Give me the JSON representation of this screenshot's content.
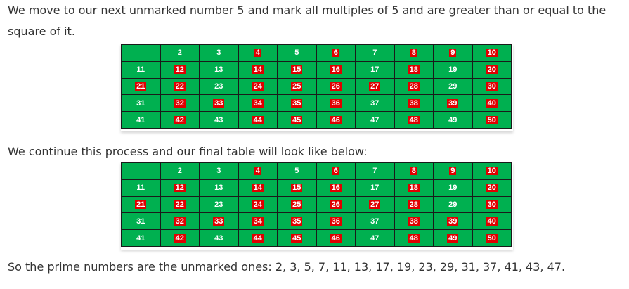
{
  "paragraphs": {
    "p1": "We move to our next unmarked number 5 and mark all multiples of 5 and are greater than or equal to the square of it.",
    "p2": "We continue this process and our final table will look like below:",
    "p3": "So the prime numbers are the unmarked ones: 2, 3, 5, 7, 11, 13, 17, 19, 23, 29, 31, 37, 41, 43, 47."
  },
  "colors": {
    "cell_green": "#00b050",
    "mark_red": "#e00000",
    "text_white": "#ffffff"
  },
  "table1": {
    "rows": [
      [
        "",
        "2",
        "3",
        "4",
        "5",
        "6",
        "7",
        "8",
        "9",
        "10"
      ],
      [
        "11",
        "12",
        "13",
        "14",
        "15",
        "16",
        "17",
        "18",
        "19",
        "20"
      ],
      [
        "21",
        "22",
        "23",
        "24",
        "25",
        "26",
        "27",
        "28",
        "29",
        "30"
      ],
      [
        "31",
        "32",
        "33",
        "34",
        "35",
        "36",
        "37",
        "38",
        "39",
        "40"
      ],
      [
        "41",
        "42",
        "43",
        "44",
        "45",
        "46",
        "47",
        "48",
        "49",
        "50"
      ]
    ],
    "marked": [
      [
        false,
        false,
        false,
        true,
        false,
        true,
        false,
        true,
        true,
        true
      ],
      [
        false,
        true,
        false,
        true,
        true,
        true,
        false,
        true,
        false,
        true
      ],
      [
        true,
        true,
        false,
        true,
        true,
        true,
        true,
        true,
        false,
        true
      ],
      [
        false,
        true,
        true,
        true,
        true,
        true,
        false,
        true,
        true,
        true
      ],
      [
        false,
        true,
        false,
        true,
        true,
        true,
        false,
        true,
        false,
        true
      ]
    ]
  },
  "table2": {
    "rows": [
      [
        "",
        "2",
        "3",
        "4",
        "5",
        "6",
        "7",
        "8",
        "9",
        "10"
      ],
      [
        "11",
        "12",
        "13",
        "14",
        "15",
        "16",
        "17",
        "18",
        "19",
        "20"
      ],
      [
        "21",
        "22",
        "23",
        "24",
        "25",
        "26",
        "27",
        "28",
        "29",
        "30"
      ],
      [
        "31",
        "32",
        "33",
        "34",
        "35",
        "36",
        "37",
        "38",
        "39",
        "40"
      ],
      [
        "41",
        "42",
        "43",
        "44",
        "45",
        "46",
        "47",
        "48",
        "49",
        "50"
      ]
    ],
    "marked": [
      [
        false,
        false,
        false,
        true,
        false,
        true,
        false,
        true,
        true,
        true
      ],
      [
        false,
        true,
        false,
        true,
        true,
        true,
        false,
        true,
        false,
        true
      ],
      [
        true,
        true,
        false,
        true,
        true,
        true,
        true,
        true,
        false,
        true
      ],
      [
        false,
        true,
        true,
        true,
        true,
        true,
        false,
        true,
        true,
        true
      ],
      [
        false,
        true,
        false,
        true,
        true,
        true,
        false,
        true,
        true,
        true
      ]
    ]
  }
}
